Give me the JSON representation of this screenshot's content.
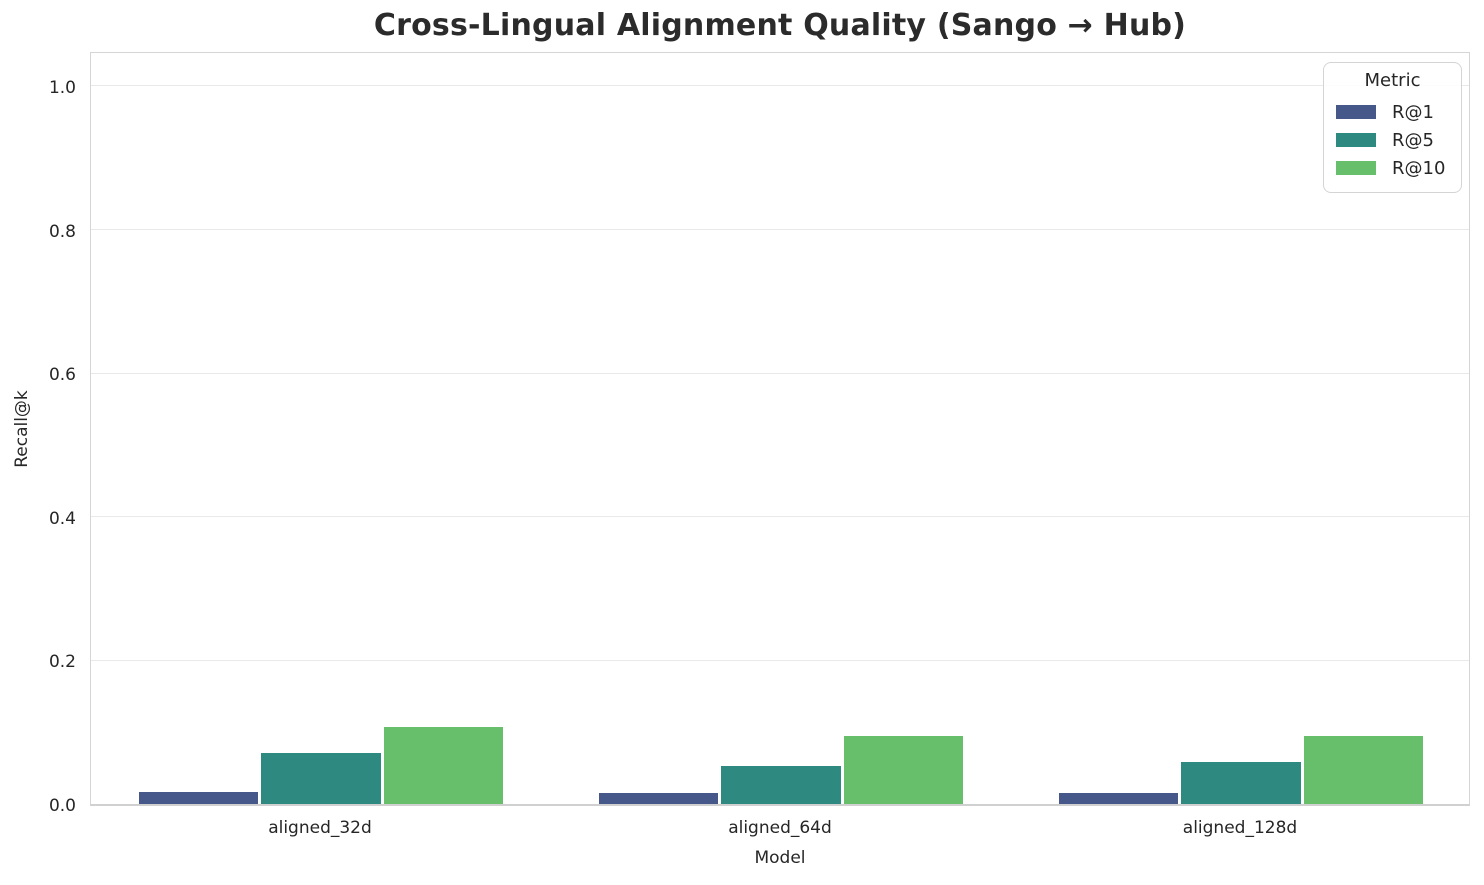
{
  "chart_data": {
    "type": "bar",
    "title": "Cross-Lingual Alignment Quality (Sango → Hub)",
    "xlabel": "Model",
    "ylabel": "Recall@k",
    "categories": [
      "aligned_32d",
      "aligned_64d",
      "aligned_128d"
    ],
    "series": [
      {
        "name": "R@1",
        "color": "#46578a",
        "values": [
          0.017,
          0.016,
          0.016
        ]
      },
      {
        "name": "R@5",
        "color": "#2e8a80",
        "values": [
          0.071,
          0.053,
          0.058
        ]
      },
      {
        "name": "R@10",
        "color": "#67bf6b",
        "values": [
          0.107,
          0.095,
          0.095
        ]
      }
    ],
    "ylim": [
      0.0,
      1.05
    ],
    "yticks": [
      0.0,
      0.2,
      0.4,
      0.6,
      0.8,
      1.0
    ],
    "grid": true,
    "legend_title": "Metric",
    "legend_position": "upper right"
  },
  "style": {
    "grid_color": "#e9e9e9",
    "spine_color": "#d5d5d5",
    "text_color": "#262626",
    "title_color": "#2b2b2b",
    "background": "#ffffff"
  }
}
